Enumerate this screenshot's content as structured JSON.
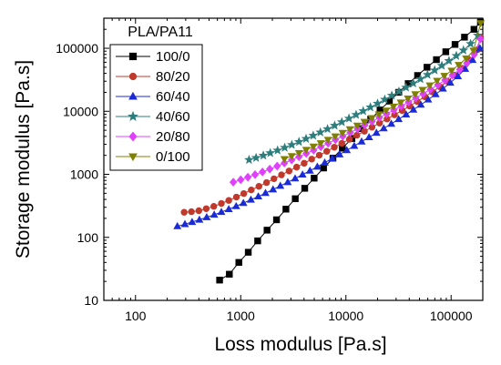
{
  "chart_data": {
    "type": "scatter",
    "xlabel": "Loss modulus [Pa.s]",
    "ylabel": "Storage modulus [Pa.s]",
    "x_scale": "log",
    "y_scale": "log",
    "xlim": [
      50,
      200000
    ],
    "ylim": [
      10,
      300000
    ],
    "x_ticks": [
      {
        "value": 100,
        "label": "100"
      },
      {
        "value": 1000,
        "label": "1000"
      },
      {
        "value": 10000,
        "label": "10000"
      },
      {
        "value": 100000,
        "label": "100000"
      }
    ],
    "y_ticks": [
      {
        "value": 10,
        "label": "10"
      },
      {
        "value": 100,
        "label": "100"
      },
      {
        "value": 1000,
        "label": "1000"
      },
      {
        "value": 10000,
        "label": "10000"
      },
      {
        "value": 100000,
        "label": "100000"
      }
    ],
    "grid": false,
    "legend": {
      "title": "PLA/PA11",
      "position": "top-left"
    },
    "series": [
      {
        "name": "100/0",
        "marker": "square",
        "color": "#000000",
        "x": [
          630,
          780,
          960,
          1180,
          1450,
          1780,
          2190,
          2690,
          3300,
          4060,
          4990,
          6130,
          7530,
          9250,
          11400,
          14000,
          17200,
          21100,
          25900,
          31800,
          39100,
          48000,
          59000,
          72500,
          89000,
          109000,
          134000,
          165000,
          190000
        ],
        "y": [
          21,
          26,
          40,
          58,
          88,
          130,
          190,
          280,
          410,
          600,
          870,
          1260,
          1800,
          2600,
          3700,
          5300,
          7500,
          10500,
          14500,
          20000,
          27500,
          37000,
          50000,
          66000,
          88000,
          115000,
          150000,
          200000,
          260000
        ]
      },
      {
        "name": "80/20",
        "marker": "circle",
        "color": "#c0392b",
        "x": [
          290,
          340,
          400,
          470,
          555,
          655,
          770,
          910,
          1070,
          1260,
          1490,
          1760,
          2070,
          2440,
          2880,
          3400,
          4010,
          4730,
          5580,
          6580,
          7760,
          9150,
          10800,
          12700,
          15000,
          17700,
          20900,
          24600,
          29000,
          34200,
          40400,
          47600,
          56200,
          66300,
          78200,
          92200,
          109000,
          128000,
          151000,
          178000,
          190000
        ],
        "y": [
          250,
          255,
          265,
          285,
          310,
          345,
          385,
          435,
          495,
          565,
          645,
          740,
          850,
          980,
          1130,
          1300,
          1500,
          1740,
          2010,
          2320,
          2690,
          3110,
          3600,
          4170,
          4830,
          5600,
          6500,
          7550,
          8800,
          10300,
          12100,
          14300,
          17000,
          20300,
          24500,
          30000,
          37500,
          48000,
          65000,
          95000,
          150000
        ]
      },
      {
        "name": "60/40",
        "marker": "triangle",
        "color": "#1a2bd6",
        "x": [
          250,
          295,
          345,
          405,
          475,
          560,
          655,
          770,
          905,
          1060,
          1250,
          1470,
          1720,
          2030,
          2380,
          2800,
          3290,
          3870,
          4550,
          5350,
          6290,
          7400,
          8700,
          10200,
          12000,
          14100,
          16600,
          19500,
          22900,
          27000,
          31700,
          37300,
          43800,
          51500,
          60500,
          71200,
          83600,
          98300,
          116000,
          136000,
          160000,
          188000
        ],
        "y": [
          150,
          162,
          175,
          190,
          208,
          228,
          252,
          280,
          312,
          350,
          395,
          445,
          505,
          575,
          655,
          750,
          860,
          990,
          1140,
          1320,
          1530,
          1780,
          2070,
          2410,
          2820,
          3300,
          3870,
          4550,
          5360,
          6330,
          7500,
          8900,
          10600,
          12700,
          15300,
          18600,
          22800,
          28400,
          36000,
          47000,
          65000,
          100000
        ]
      },
      {
        "name": "40/60",
        "marker": "star",
        "color": "#2e7d7d",
        "x": [
          1200,
          1400,
          1640,
          1910,
          2240,
          2620,
          3060,
          3580,
          4180,
          4890,
          5720,
          6690,
          7820,
          9140,
          10700,
          12500,
          14600,
          17100,
          20000,
          23400,
          27300,
          31900,
          37300,
          43700,
          51100,
          59700,
          69800,
          81600,
          95400,
          112000,
          131000,
          153000,
          179000
        ],
        "y": [
          1700,
          1830,
          1990,
          2180,
          2400,
          2650,
          2940,
          3280,
          3670,
          4120,
          4640,
          5240,
          5940,
          6750,
          7700,
          8800,
          10100,
          11600,
          13300,
          15400,
          17800,
          20600,
          23900,
          27800,
          32500,
          38000,
          44800,
          53000,
          63200,
          76000,
          93000,
          118000,
          160000
        ]
      },
      {
        "name": "20/80",
        "marker": "diamond",
        "color": "#e040fb",
        "x": [
          850,
          1000,
          1170,
          1370,
          1610,
          1890,
          2220,
          2600,
          3050,
          3580,
          4200,
          4930,
          5780,
          6780,
          7960,
          9340,
          11000,
          12900,
          15100,
          17700,
          20800,
          24400,
          28600,
          33600,
          39400,
          46200,
          54200,
          63600,
          74700,
          87600,
          103000,
          121000,
          141000,
          166000,
          190000
        ],
        "y": [
          750,
          820,
          900,
          990,
          1090,
          1210,
          1350,
          1510,
          1690,
          1900,
          2140,
          2420,
          2740,
          3110,
          3540,
          4030,
          4600,
          5260,
          6020,
          6900,
          7920,
          9100,
          10500,
          12100,
          14000,
          16300,
          19000,
          22300,
          26300,
          31200,
          37500,
          46000,
          58000,
          80000,
          140000
        ]
      },
      {
        "name": "0/100",
        "marker": "triangle-down",
        "color": "#808000",
        "x": [
          2600,
          3050,
          3580,
          4190,
          4910,
          5760,
          6750,
          7910,
          9280,
          10900,
          12800,
          15000,
          17600,
          20600,
          24100,
          28300,
          33200,
          38900,
          45600,
          53500,
          62700,
          73500,
          86200,
          101000,
          118000,
          139000,
          163000,
          191000
        ],
        "y": [
          1750,
          1950,
          2180,
          2450,
          2760,
          3120,
          3530,
          4010,
          4560,
          5200,
          5940,
          6800,
          7800,
          8960,
          10300,
          11900,
          13800,
          16000,
          18700,
          21900,
          25800,
          30600,
          36600,
          44300,
          54500,
          69000,
          92000,
          250000
        ]
      }
    ]
  }
}
